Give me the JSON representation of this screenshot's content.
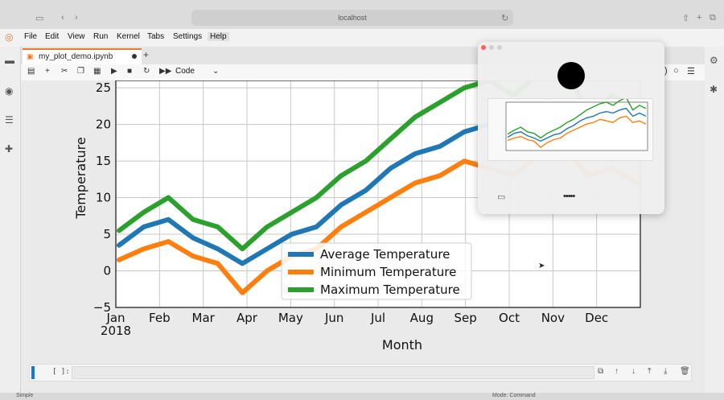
{
  "browser": {
    "address": "localhost"
  },
  "menu": [
    "File",
    "Edit",
    "View",
    "Run",
    "Kernel",
    "Tabs",
    "Settings",
    "Help"
  ],
  "notebook": {
    "tab_label": "my_plot_demo.ipynb",
    "celltype": "Code",
    "prompt": "[ ]:"
  },
  "chart_data": {
    "type": "line",
    "xlabel": "Month",
    "ylabel": "Temperature",
    "x_ticks": [
      "Jan\n2018",
      "Feb",
      "Mar",
      "Apr",
      "May",
      "Jun",
      "Jul",
      "Aug",
      "Sep",
      "Oct",
      "Nov",
      "Dec"
    ],
    "y_ticks": [
      -5,
      0,
      5,
      10,
      15,
      20,
      25
    ],
    "ylim": [
      -5,
      26
    ],
    "grid": true,
    "legend_position": "lower center",
    "series": [
      {
        "name": "Average Temperature",
        "color": "#1f77b4",
        "values": [
          3.5,
          6,
          7,
          4.5,
          3,
          1,
          3,
          5,
          6,
          9,
          11,
          14,
          16,
          17,
          19,
          20,
          19,
          21,
          22,
          17,
          19,
          17
        ]
      },
      {
        "name": "Minimum Temperature",
        "color": "#ff7f0e",
        "values": [
          1.5,
          3,
          4,
          2,
          1,
          -3,
          0,
          2,
          3,
          6,
          8,
          10,
          12,
          13,
          15,
          14,
          13,
          16,
          17,
          13,
          14,
          12
        ]
      },
      {
        "name": "Maximum Temperature",
        "color": "#2ca02c",
        "values": [
          5.5,
          8,
          10,
          7,
          6,
          3,
          6,
          8,
          10,
          13,
          15,
          18,
          21,
          23,
          25,
          26,
          24,
          27,
          29,
          21,
          24,
          22
        ]
      }
    ]
  },
  "popup": {
    "dots": "•••••"
  },
  "statusbar": {
    "left": "Simple",
    "right": "Mode: Command"
  }
}
